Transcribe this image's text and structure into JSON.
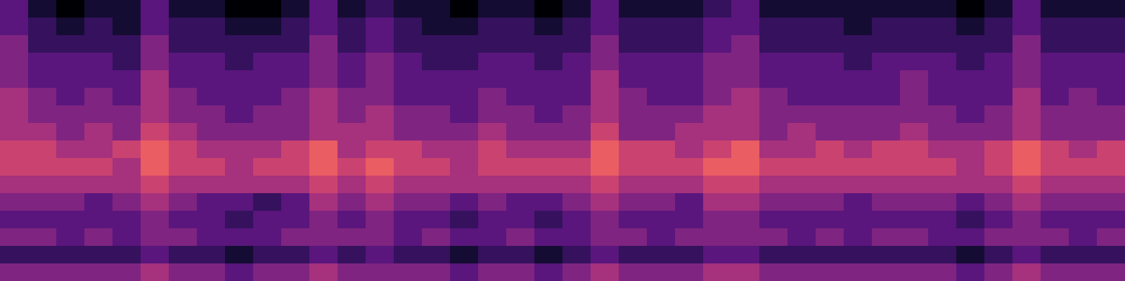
{
  "chart_data": {
    "type": "heatmap",
    "tick_labels": false,
    "zlim": [
      0,
      9
    ],
    "cells": [
      [
        3,
        1,
        0,
        1,
        1,
        3,
        1,
        1,
        0,
        0,
        1,
        3,
        1,
        2,
        1,
        1,
        0,
        1,
        1,
        0,
        1,
        3,
        1,
        1,
        1,
        2,
        3,
        1,
        1,
        1,
        1,
        1,
        1,
        1,
        0,
        1,
        3,
        1,
        1,
        1
      ],
      [
        3,
        2,
        1,
        2,
        1,
        3,
        2,
        2,
        1,
        1,
        2,
        3,
        2,
        3,
        2,
        1,
        1,
        2,
        2,
        1,
        2,
        3,
        2,
        2,
        2,
        3,
        3,
        2,
        2,
        2,
        1,
        2,
        2,
        2,
        1,
        2,
        3,
        2,
        2,
        2
      ],
      [
        4,
        2,
        2,
        2,
        2,
        4,
        2,
        2,
        2,
        2,
        2,
        4,
        2,
        3,
        2,
        2,
        2,
        2,
        2,
        2,
        2,
        4,
        2,
        2,
        2,
        3,
        4,
        2,
        2,
        2,
        2,
        2,
        2,
        2,
        2,
        2,
        4,
        2,
        2,
        2
      ],
      [
        4,
        3,
        3,
        3,
        2,
        4,
        3,
        3,
        2,
        3,
        3,
        4,
        3,
        4,
        3,
        2,
        2,
        3,
        3,
        2,
        3,
        4,
        3,
        3,
        3,
        4,
        4,
        3,
        3,
        3,
        2,
        3,
        3,
        3,
        2,
        3,
        4,
        3,
        3,
        3
      ],
      [
        4,
        3,
        3,
        3,
        3,
        5,
        3,
        3,
        3,
        3,
        3,
        4,
        3,
        4,
        3,
        3,
        3,
        3,
        3,
        3,
        3,
        5,
        3,
        3,
        3,
        4,
        4,
        3,
        3,
        3,
        3,
        3,
        4,
        3,
        3,
        3,
        4,
        3,
        3,
        3
      ],
      [
        5,
        4,
        3,
        4,
        3,
        5,
        4,
        3,
        3,
        3,
        4,
        5,
        4,
        4,
        3,
        3,
        3,
        4,
        3,
        3,
        3,
        5,
        4,
        3,
        3,
        4,
        5,
        4,
        3,
        3,
        3,
        3,
        4,
        3,
        3,
        3,
        5,
        3,
        4,
        3
      ],
      [
        5,
        4,
        4,
        4,
        4,
        5,
        4,
        4,
        3,
        4,
        4,
        5,
        4,
        5,
        4,
        4,
        3,
        4,
        4,
        3,
        4,
        5,
        4,
        4,
        4,
        5,
        5,
        4,
        4,
        4,
        4,
        4,
        4,
        4,
        3,
        4,
        5,
        4,
        4,
        4
      ],
      [
        5,
        5,
        4,
        5,
        4,
        6,
        5,
        4,
        4,
        4,
        4,
        5,
        5,
        5,
        4,
        4,
        4,
        5,
        4,
        4,
        4,
        6,
        4,
        4,
        5,
        5,
        5,
        4,
        5,
        4,
        4,
        4,
        5,
        4,
        4,
        4,
        5,
        4,
        4,
        4
      ],
      [
        6,
        6,
        5,
        5,
        6,
        7,
        6,
        5,
        5,
        5,
        6,
        7,
        5,
        6,
        6,
        5,
        5,
        6,
        5,
        5,
        5,
        7,
        6,
        6,
        5,
        6,
        7,
        5,
        5,
        6,
        5,
        6,
        6,
        5,
        5,
        6,
        7,
        6,
        5,
        6
      ],
      [
        6,
        6,
        6,
        6,
        5,
        7,
        6,
        6,
        5,
        6,
        6,
        7,
        6,
        7,
        6,
        6,
        5,
        6,
        6,
        6,
        6,
        7,
        6,
        6,
        6,
        7,
        7,
        6,
        6,
        6,
        6,
        6,
        6,
        6,
        5,
        6,
        7,
        6,
        6,
        6
      ],
      [
        5,
        5,
        5,
        5,
        5,
        6,
        5,
        5,
        5,
        5,
        5,
        6,
        5,
        6,
        5,
        5,
        5,
        5,
        5,
        5,
        5,
        6,
        5,
        5,
        5,
        6,
        6,
        5,
        5,
        5,
        5,
        5,
        5,
        5,
        5,
        5,
        6,
        5,
        5,
        5
      ],
      [
        4,
        4,
        4,
        3,
        4,
        5,
        4,
        3,
        3,
        2,
        3,
        5,
        4,
        5,
        4,
        4,
        3,
        4,
        3,
        3,
        4,
        5,
        4,
        4,
        3,
        5,
        5,
        4,
        4,
        4,
        3,
        4,
        4,
        4,
        3,
        4,
        5,
        4,
        4,
        4
      ],
      [
        3,
        3,
        3,
        3,
        3,
        4,
        3,
        3,
        2,
        3,
        3,
        4,
        3,
        4,
        3,
        3,
        2,
        3,
        3,
        2,
        3,
        4,
        3,
        3,
        3,
        4,
        4,
        3,
        3,
        3,
        3,
        3,
        3,
        3,
        2,
        3,
        4,
        3,
        3,
        3
      ],
      [
        4,
        4,
        3,
        4,
        3,
        4,
        4,
        3,
        3,
        3,
        4,
        4,
        4,
        4,
        3,
        4,
        3,
        3,
        4,
        3,
        3,
        4,
        4,
        3,
        4,
        4,
        4,
        4,
        3,
        4,
        3,
        4,
        4,
        3,
        3,
        4,
        4,
        4,
        3,
        4
      ],
      [
        2,
        2,
        2,
        2,
        2,
        3,
        2,
        2,
        1,
        2,
        2,
        3,
        2,
        3,
        2,
        2,
        1,
        2,
        2,
        1,
        2,
        3,
        2,
        2,
        2,
        3,
        3,
        2,
        2,
        2,
        2,
        2,
        2,
        2,
        1,
        2,
        3,
        2,
        2,
        2
      ],
      [
        4,
        4,
        4,
        4,
        4,
        5,
        4,
        4,
        3,
        4,
        4,
        5,
        4,
        4,
        4,
        4,
        3,
        4,
        4,
        3,
        4,
        5,
        4,
        4,
        4,
        5,
        5,
        4,
        4,
        4,
        4,
        4,
        4,
        4,
        3,
        4,
        5,
        4,
        4,
        4
      ]
    ]
  }
}
